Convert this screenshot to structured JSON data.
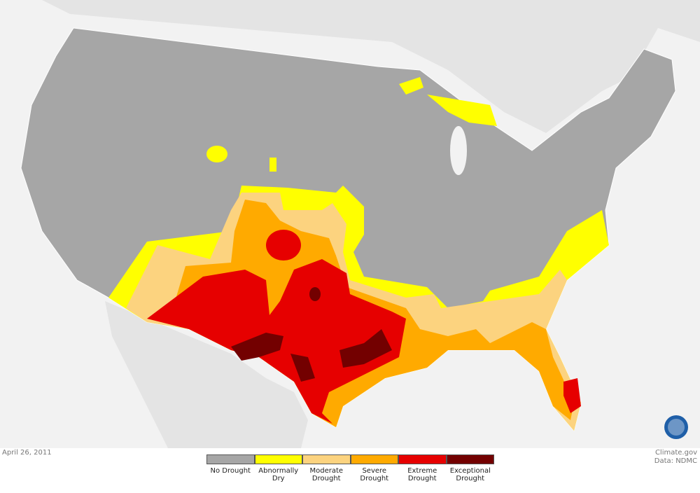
{
  "date": "April 26, 2011",
  "credit": {
    "site": "Climate.gov",
    "source": "Data: NDMC"
  },
  "legend": [
    {
      "label": "No Drought",
      "color": "#a6a6a6"
    },
    {
      "label": "Abnormally Dry",
      "color": "#ffff00"
    },
    {
      "label": "Moderate Drought",
      "color": "#fcd37f"
    },
    {
      "label": "Severe Drought",
      "color": "#ffaa00"
    },
    {
      "label": "Extreme Drought",
      "color": "#e60000"
    },
    {
      "label": "Exceptional Drought",
      "color": "#730000"
    }
  ]
}
